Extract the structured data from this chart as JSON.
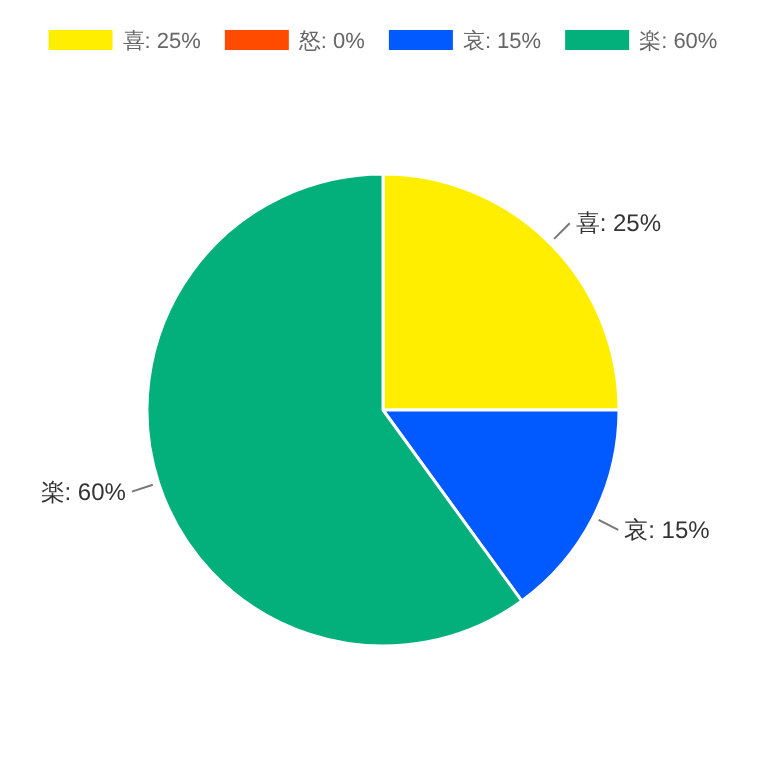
{
  "chart_data": {
    "type": "pie",
    "categories": [
      "喜",
      "怒",
      "哀",
      "楽"
    ],
    "values": [
      25,
      0,
      15,
      60
    ],
    "value_labels": [
      "25%",
      "0%",
      "15%",
      "60%"
    ],
    "colors": [
      "#ffee00",
      "#ff4b00",
      "#005aff",
      "#03af7a"
    ],
    "legend": "top"
  }
}
